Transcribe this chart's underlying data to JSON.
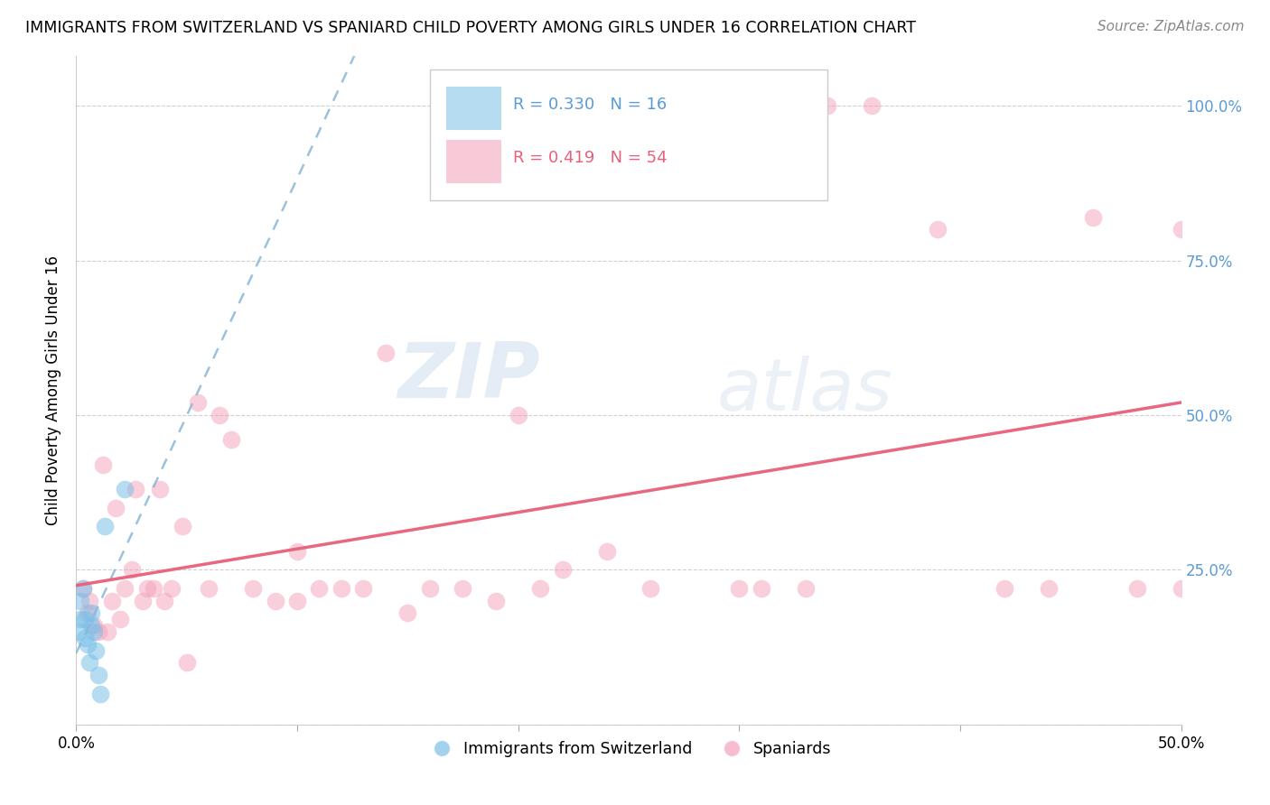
{
  "title": "IMMIGRANTS FROM SWITZERLAND VS SPANIARD CHILD POVERTY AMONG GIRLS UNDER 16 CORRELATION CHART",
  "source": "Source: ZipAtlas.com",
  "ylabel": "Child Poverty Among Girls Under 16",
  "xlim": [
    0.0,
    0.5
  ],
  "ylim": [
    0.0,
    1.08
  ],
  "xtick_positions": [
    0.0,
    0.1,
    0.2,
    0.3,
    0.4,
    0.5
  ],
  "xticklabels": [
    "0.0%",
    "",
    "",
    "",
    "",
    "50.0%"
  ],
  "ytick_positions": [
    0.0,
    0.25,
    0.5,
    0.75,
    1.0
  ],
  "yticklabels_right": [
    "",
    "25.0%",
    "50.0%",
    "75.0%",
    "100.0%"
  ],
  "legend1_label": "Immigrants from Switzerland",
  "legend2_label": "Spaniards",
  "R_swiss": 0.33,
  "N_swiss": 16,
  "R_spain": 0.419,
  "N_spain": 54,
  "color_swiss": "#7bc0e8",
  "color_spain": "#f4a0b8",
  "line_swiss_color": "#8ab8d8",
  "line_spain_color": "#e8607a",
  "watermark_zip": "ZIP",
  "watermark_atlas": "atlas",
  "swiss_x": [
    0.001,
    0.002,
    0.002,
    0.003,
    0.004,
    0.004,
    0.005,
    0.006,
    0.007,
    0.007,
    0.008,
    0.009,
    0.01,
    0.011,
    0.013,
    0.022
  ],
  "swiss_y": [
    0.15,
    0.17,
    0.2,
    0.22,
    0.14,
    0.17,
    0.13,
    0.1,
    0.16,
    0.18,
    0.15,
    0.12,
    0.08,
    0.05,
    0.32,
    0.38
  ],
  "spain_x": [
    0.003,
    0.005,
    0.006,
    0.008,
    0.01,
    0.012,
    0.014,
    0.016,
    0.018,
    0.02,
    0.022,
    0.025,
    0.027,
    0.03,
    0.032,
    0.035,
    0.038,
    0.04,
    0.043,
    0.048,
    0.055,
    0.06,
    0.065,
    0.07,
    0.08,
    0.09,
    0.1,
    0.11,
    0.12,
    0.13,
    0.14,
    0.15,
    0.16,
    0.175,
    0.19,
    0.2,
    0.21,
    0.22,
    0.24,
    0.26,
    0.3,
    0.31,
    0.33,
    0.34,
    0.36,
    0.39,
    0.42,
    0.44,
    0.46,
    0.48,
    0.5,
    0.5,
    0.05,
    0.1
  ],
  "spain_y": [
    0.22,
    0.18,
    0.2,
    0.16,
    0.15,
    0.42,
    0.15,
    0.2,
    0.35,
    0.17,
    0.22,
    0.25,
    0.38,
    0.2,
    0.22,
    0.22,
    0.38,
    0.2,
    0.22,
    0.32,
    0.52,
    0.22,
    0.5,
    0.46,
    0.22,
    0.2,
    0.28,
    0.22,
    0.22,
    0.22,
    0.6,
    0.18,
    0.22,
    0.22,
    0.2,
    0.5,
    0.22,
    0.25,
    0.28,
    0.22,
    0.22,
    0.22,
    0.22,
    1.0,
    1.0,
    0.8,
    0.22,
    0.22,
    0.82,
    0.22,
    0.8,
    0.22,
    0.1,
    0.2
  ]
}
